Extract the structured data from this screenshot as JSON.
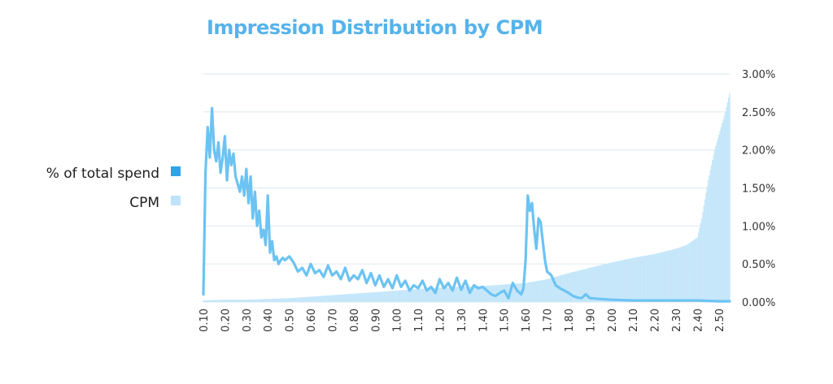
{
  "chart_data": {
    "type": "bar+line",
    "title": "Impression Distribution by CPM",
    "xlabel": "",
    "ylabel": "",
    "x_ticks": [
      "0.10",
      "0.20",
      "0.30",
      "0.40",
      "0.50",
      "0.60",
      "0.70",
      "0.80",
      "0.90",
      "1.00",
      "1.10",
      "1.20",
      "1.30",
      "1.40",
      "1.50",
      "1.60",
      "1.70",
      "1.80",
      "1.90",
      "2.00",
      "2.10",
      "2.20",
      "2.30",
      "2.40",
      "2.50"
    ],
    "xlim": [
      0.1,
      2.55
    ],
    "ylim": [
      0,
      3.0
    ],
    "y_ticks": [
      "0.00%",
      "0.50%",
      "1.00%",
      "1.50%",
      "2.00%",
      "2.50%",
      "3.00%"
    ],
    "y_axis_position": "right",
    "grid": true,
    "legend_position": "left",
    "colors": {
      "line": "#6cc3f3",
      "bars": "#c4e6fa",
      "swatch_line": "#2ea3e8",
      "swatch_bars": "#bfe3f9",
      "grid": "#dde7ee",
      "title": "#55b3ec"
    },
    "series": [
      {
        "name": "% of total spend",
        "type": "line",
        "x": [
          0.1,
          0.11,
          0.12,
          0.13,
          0.14,
          0.15,
          0.16,
          0.17,
          0.18,
          0.19,
          0.2,
          0.21,
          0.22,
          0.23,
          0.24,
          0.25,
          0.26,
          0.27,
          0.28,
          0.29,
          0.3,
          0.31,
          0.32,
          0.33,
          0.34,
          0.35,
          0.36,
          0.37,
          0.38,
          0.39,
          0.4,
          0.41,
          0.42,
          0.43,
          0.44,
          0.45,
          0.46,
          0.47,
          0.48,
          0.5,
          0.52,
          0.54,
          0.56,
          0.58,
          0.6,
          0.62,
          0.64,
          0.66,
          0.68,
          0.7,
          0.72,
          0.74,
          0.76,
          0.78,
          0.8,
          0.82,
          0.84,
          0.86,
          0.88,
          0.9,
          0.92,
          0.94,
          0.96,
          0.98,
          1.0,
          1.02,
          1.04,
          1.06,
          1.08,
          1.1,
          1.12,
          1.14,
          1.16,
          1.18,
          1.2,
          1.22,
          1.24,
          1.26,
          1.28,
          1.3,
          1.32,
          1.34,
          1.36,
          1.38,
          1.4,
          1.42,
          1.44,
          1.46,
          1.48,
          1.5,
          1.52,
          1.54,
          1.56,
          1.58,
          1.59,
          1.6,
          1.61,
          1.62,
          1.63,
          1.64,
          1.65,
          1.66,
          1.67,
          1.68,
          1.69,
          1.7,
          1.72,
          1.74,
          1.76,
          1.78,
          1.8,
          1.82,
          1.84,
          1.86,
          1.88,
          1.9,
          1.95,
          2.0,
          2.1,
          2.2,
          2.3,
          2.4,
          2.5,
          2.55
        ],
        "values": [
          0.1,
          1.7,
          2.3,
          1.9,
          2.55,
          2.0,
          1.85,
          2.1,
          1.7,
          1.9,
          2.18,
          1.6,
          2.0,
          1.8,
          1.95,
          1.65,
          1.55,
          1.45,
          1.65,
          1.4,
          1.75,
          1.3,
          1.65,
          1.1,
          1.45,
          1.0,
          1.2,
          0.85,
          0.95,
          0.75,
          1.4,
          0.65,
          0.8,
          0.55,
          0.6,
          0.5,
          0.55,
          0.58,
          0.55,
          0.6,
          0.52,
          0.4,
          0.45,
          0.35,
          0.5,
          0.38,
          0.42,
          0.33,
          0.48,
          0.35,
          0.4,
          0.3,
          0.45,
          0.28,
          0.35,
          0.3,
          0.42,
          0.25,
          0.38,
          0.22,
          0.35,
          0.2,
          0.3,
          0.18,
          0.35,
          0.2,
          0.28,
          0.15,
          0.22,
          0.18,
          0.28,
          0.15,
          0.2,
          0.12,
          0.3,
          0.18,
          0.25,
          0.15,
          0.32,
          0.16,
          0.28,
          0.12,
          0.22,
          0.18,
          0.2,
          0.15,
          0.1,
          0.08,
          0.12,
          0.15,
          0.05,
          0.25,
          0.15,
          0.1,
          0.18,
          0.55,
          1.4,
          1.2,
          1.3,
          0.95,
          0.7,
          1.1,
          1.05,
          0.8,
          0.55,
          0.4,
          0.35,
          0.22,
          0.18,
          0.15,
          0.12,
          0.08,
          0.06,
          0.05,
          0.1,
          0.05,
          0.04,
          0.03,
          0.02,
          0.02,
          0.02,
          0.02,
          0.01,
          0.01
        ]
      },
      {
        "name": "CPM",
        "type": "bar",
        "x": [
          0.1,
          0.2,
          0.3,
          0.4,
          0.5,
          0.6,
          0.7,
          0.8,
          0.9,
          1.0,
          1.1,
          1.2,
          1.3,
          1.4,
          1.5,
          1.6,
          1.7,
          1.8,
          1.9,
          2.0,
          2.1,
          2.2,
          2.3,
          2.35,
          2.4,
          2.42,
          2.45,
          2.48,
          2.5,
          2.53,
          2.55
        ],
        "values": [
          0.02,
          0.03,
          0.03,
          0.04,
          0.05,
          0.07,
          0.09,
          0.11,
          0.13,
          0.15,
          0.17,
          0.19,
          0.2,
          0.21,
          0.23,
          0.25,
          0.3,
          0.38,
          0.45,
          0.52,
          0.58,
          0.63,
          0.7,
          0.75,
          0.85,
          1.1,
          1.6,
          2.0,
          2.2,
          2.5,
          2.75
        ]
      }
    ]
  }
}
